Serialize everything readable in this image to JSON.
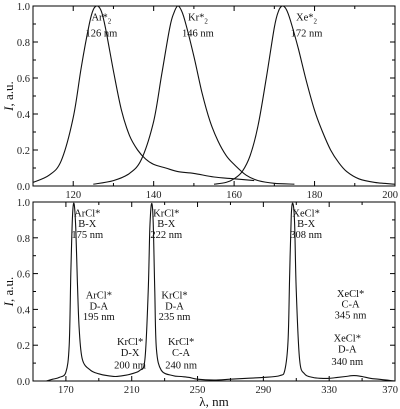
{
  "chart_data": [
    {
      "type": "line",
      "xlim": [
        110,
        200
      ],
      "ylim": [
        0,
        1.0
      ],
      "xticks": [
        120,
        140,
        160,
        180,
        200
      ],
      "yticks": [
        0.0,
        0.2,
        0.4,
        0.6,
        0.8,
        1.0
      ],
      "xlabel": "",
      "ylabel": "I, a.u.",
      "series": [
        {
          "name": "Ar*2 126 nm",
          "x": [
            110,
            114,
            117,
            120,
            122,
            124,
            125,
            126,
            127,
            128,
            130,
            132,
            134,
            136,
            138,
            140,
            143,
            146,
            150,
            155,
            160,
            165
          ],
          "y": [
            0.02,
            0.06,
            0.14,
            0.38,
            0.66,
            0.9,
            0.98,
            1.0,
            0.97,
            0.88,
            0.64,
            0.42,
            0.28,
            0.2,
            0.15,
            0.12,
            0.1,
            0.08,
            0.07,
            0.05,
            0.04,
            0.03
          ]
        },
        {
          "name": "Kr*2 146 nm",
          "x": [
            125,
            130,
            134,
            137,
            140,
            142,
            144,
            145,
            146,
            147,
            148,
            150,
            152,
            154,
            156,
            158,
            160,
            163,
            166,
            170,
            175
          ],
          "y": [
            0.01,
            0.03,
            0.07,
            0.15,
            0.36,
            0.62,
            0.88,
            0.96,
            1.0,
            0.97,
            0.9,
            0.72,
            0.52,
            0.36,
            0.25,
            0.17,
            0.12,
            0.06,
            0.03,
            0.015,
            0.01
          ]
        },
        {
          "name": "Xe*2 172 nm",
          "x": [
            155,
            158,
            160,
            162,
            164,
            166,
            168,
            170,
            171,
            172,
            173,
            174,
            176,
            178,
            180,
            182,
            184,
            186,
            188,
            191,
            195,
            200
          ],
          "y": [
            0.01,
            0.02,
            0.04,
            0.08,
            0.17,
            0.34,
            0.6,
            0.88,
            0.97,
            1.0,
            0.98,
            0.92,
            0.76,
            0.58,
            0.42,
            0.3,
            0.2,
            0.13,
            0.08,
            0.04,
            0.02,
            0.01
          ]
        }
      ],
      "annotations": [
        {
          "text": "Ar*",
          "sub": "2",
          "x": 127,
          "y": 0.92
        },
        {
          "text": "126 nm",
          "x": 127,
          "y": 0.83
        },
        {
          "text": "Kr*",
          "sub": "2",
          "x": 151,
          "y": 0.92
        },
        {
          "text": "146 nm",
          "x": 151,
          "y": 0.83
        },
        {
          "text": "Xe*",
          "sub": "2",
          "x": 178,
          "y": 0.92
        },
        {
          "text": "172 nm",
          "x": 178,
          "y": 0.83
        }
      ]
    },
    {
      "type": "line",
      "xlim": [
        150,
        370
      ],
      "ylim": [
        0,
        1.0
      ],
      "xticks": [
        170,
        210,
        250,
        290,
        330,
        370
      ],
      "yticks": [
        0.0,
        0.2,
        0.4,
        0.6,
        0.8,
        1.0
      ],
      "xlabel": "λ, nm",
      "ylabel": "I, a.u.",
      "series": [
        {
          "name": "spectrum",
          "x": [
            158,
            162,
            166,
            170,
            172,
            173,
            174,
            175,
            176,
            177,
            178,
            180,
            185,
            190,
            195,
            200,
            205,
            210,
            215,
            218,
            220,
            221,
            222,
            223,
            224,
            225,
            228,
            235,
            240,
            245,
            250,
            260,
            270,
            280,
            290,
            300,
            303,
            305,
            306,
            307,
            308,
            309,
            310,
            312,
            315,
            320,
            325,
            330,
            335,
            340,
            345,
            350,
            355,
            360,
            365,
            370
          ],
          "y": [
            0.0,
            0.01,
            0.02,
            0.05,
            0.2,
            0.6,
            0.92,
            0.99,
            0.85,
            0.55,
            0.3,
            0.12,
            0.06,
            0.04,
            0.03,
            0.025,
            0.03,
            0.04,
            0.06,
            0.12,
            0.5,
            0.85,
            0.99,
            0.9,
            0.5,
            0.18,
            0.06,
            0.03,
            0.025,
            0.02,
            0.01,
            0.005,
            0.01,
            0.015,
            0.02,
            0.03,
            0.06,
            0.22,
            0.6,
            0.93,
            0.99,
            0.88,
            0.5,
            0.12,
            0.04,
            0.02,
            0.015,
            0.015,
            0.02,
            0.025,
            0.03,
            0.025,
            0.015,
            0.01,
            0.005,
            0.0
          ]
        }
      ],
      "annotations": [
        {
          "text": "ArCl*",
          "x": 183,
          "y": 0.92
        },
        {
          "text": "B-X",
          "x": 183,
          "y": 0.86
        },
        {
          "text": "175 nm",
          "x": 183,
          "y": 0.8
        },
        {
          "text": "KrCl*",
          "x": 231,
          "y": 0.92
        },
        {
          "text": "B-X",
          "x": 231,
          "y": 0.86
        },
        {
          "text": "222 nm",
          "x": 231,
          "y": 0.8
        },
        {
          "text": "XeCl*",
          "x": 316,
          "y": 0.92
        },
        {
          "text": "B-X",
          "x": 316,
          "y": 0.86
        },
        {
          "text": "308 nm",
          "x": 316,
          "y": 0.8
        },
        {
          "text": "ArCl*",
          "x": 190,
          "y": 0.46
        },
        {
          "text": "D-A",
          "x": 190,
          "y": 0.4
        },
        {
          "text": "195 nm",
          "x": 190,
          "y": 0.34
        },
        {
          "text": "KrCl*",
          "x": 236,
          "y": 0.46
        },
        {
          "text": "D-A",
          "x": 236,
          "y": 0.4
        },
        {
          "text": "235 nm",
          "x": 236,
          "y": 0.34
        },
        {
          "text": "XeCl*",
          "x": 343,
          "y": 0.47
        },
        {
          "text": "C-A",
          "x": 343,
          "y": 0.41
        },
        {
          "text": "345 nm",
          "x": 343,
          "y": 0.35
        },
        {
          "text": "KrCl*",
          "x": 209,
          "y": 0.2
        },
        {
          "text": "D-X",
          "x": 209,
          "y": 0.14
        },
        {
          "text": "200 nm",
          "x": 209,
          "y": 0.07
        },
        {
          "text": "KrCl*",
          "x": 240,
          "y": 0.2
        },
        {
          "text": "C-A",
          "x": 240,
          "y": 0.14
        },
        {
          "text": "240 nm",
          "x": 240,
          "y": 0.07
        },
        {
          "text": "XeCl*",
          "x": 341,
          "y": 0.22
        },
        {
          "text": "D-A",
          "x": 341,
          "y": 0.16
        },
        {
          "text": "340 nm",
          "x": 341,
          "y": 0.09
        }
      ]
    }
  ]
}
